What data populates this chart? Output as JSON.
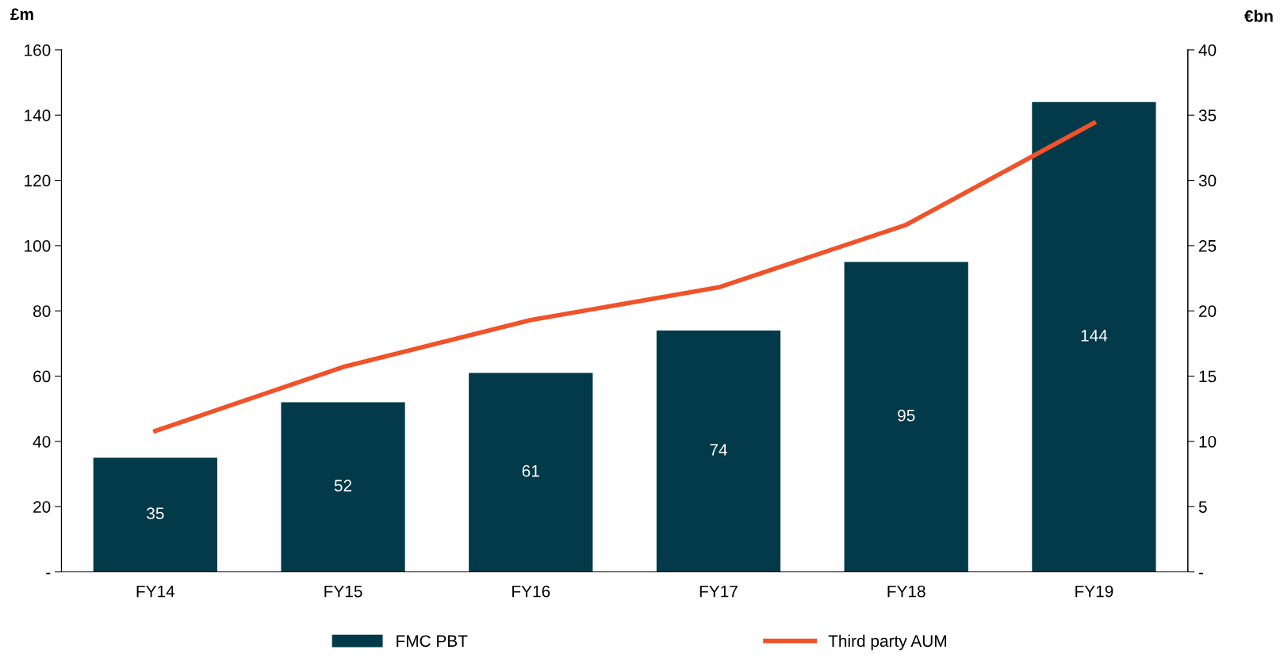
{
  "chart_data": {
    "type": "bar",
    "ylabel": "£m",
    "y2label": "€bn",
    "categories": [
      "FY14",
      "FY15",
      "FY16",
      "FY17",
      "FY18",
      "FY19"
    ],
    "series": [
      {
        "name": "FMC PBT",
        "color": "#023a4a",
        "values": [
          35,
          52,
          61,
          74,
          95,
          144
        ],
        "value_labels": [
          "35",
          "52",
          "61",
          "74",
          "95",
          "144"
        ]
      },
      {
        "name": "Third party AUM",
        "type": "line",
        "axis": "y2",
        "color": "#f0522a",
        "values": [
          10.8,
          15.7,
          19.3,
          21.8,
          26.6,
          34.4
        ]
      }
    ],
    "ylim": [
      0,
      160
    ],
    "yticks": [
      {
        "value": 0,
        "label": "-"
      },
      20,
      40,
      60,
      80,
      100,
      120,
      140,
      160
    ],
    "y2lim": [
      0,
      40
    ],
    "y2ticks": [
      {
        "value": 0,
        "label": "-"
      },
      5,
      10,
      15,
      20,
      25,
      30,
      35,
      40
    ],
    "legend": "bottom",
    "grid": false,
    "marker": "none",
    "line_style": "solid"
  }
}
